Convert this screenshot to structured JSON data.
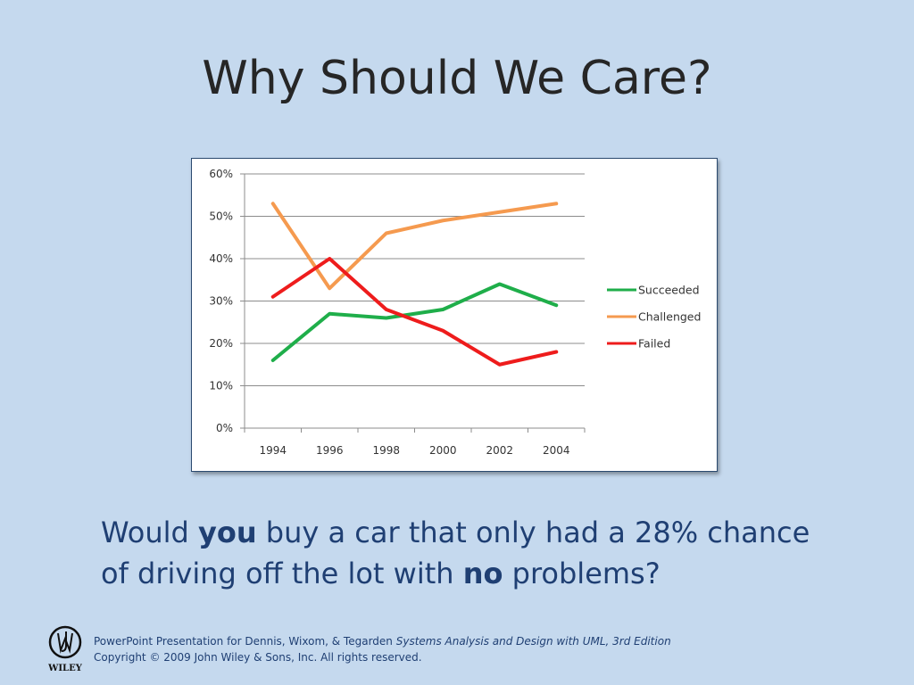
{
  "slide": {
    "title": "Why Should We Care?",
    "question": {
      "part1": "Would ",
      "bold1": "you",
      "part2": " buy a car that only had a 28% chance of driving off the lot with ",
      "bold2": "no",
      "part3": " problems?"
    },
    "footer": {
      "line1_prefix": "PowerPoint Presentation for Dennis, Wixom, & Tegarden ",
      "line1_italic": "Systems Analysis and Design with UML, 3rd Edition",
      "line2": "Copyright © 2009 John Wiley & Sons, Inc.  All rights reserved.",
      "logo_text": "WILEY"
    }
  },
  "chart_data": {
    "type": "line",
    "categories": [
      "1994",
      "1996",
      "1998",
      "2000",
      "2002",
      "2004"
    ],
    "y_ticks": [
      "0%",
      "10%",
      "20%",
      "30%",
      "40%",
      "50%",
      "60%"
    ],
    "ylim": [
      0,
      60
    ],
    "grid": true,
    "legend_position": "right",
    "series": [
      {
        "name": "Succeeded",
        "color": "#1fae4a",
        "values": [
          16,
          27,
          26,
          28,
          34,
          29
        ]
      },
      {
        "name": "Challenged",
        "color": "#f59a4f",
        "values": [
          53,
          33,
          46,
          49,
          51,
          53
        ]
      },
      {
        "name": "Failed",
        "color": "#ee1c1c",
        "values": [
          31,
          40,
          28,
          23,
          15,
          18
        ]
      }
    ]
  }
}
